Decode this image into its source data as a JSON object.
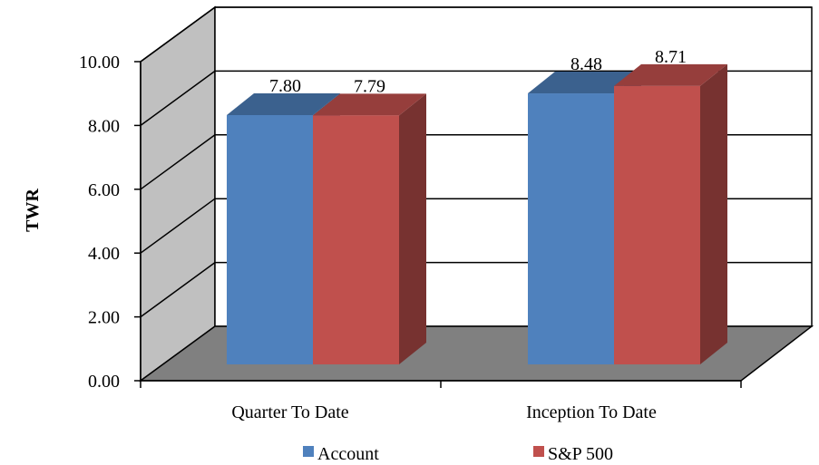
{
  "chart_data": {
    "type": "bar",
    "categories": [
      "Quarter To Date",
      "Inception To Date"
    ],
    "series": [
      {
        "name": "Account",
        "values": [
          7.8,
          8.48
        ],
        "labels": [
          "7.80",
          "8.48"
        ]
      },
      {
        "name": "S&P 500",
        "values": [
          7.79,
          8.71
        ],
        "labels": [
          "7.79",
          "8.71"
        ]
      }
    ],
    "ylabel": "TWR",
    "ylim": [
      0,
      10
    ],
    "yticks": [
      "0.00",
      "2.00",
      "4.00",
      "6.00",
      "8.00",
      "10.00"
    ],
    "grid": true,
    "legend": "bottom",
    "style": "3d-clustered-column",
    "colors": {
      "Account": "#4f81bd",
      "S&P 500": "#c0504d",
      "floor": "#808080",
      "wall": "#c0c0c0"
    }
  }
}
